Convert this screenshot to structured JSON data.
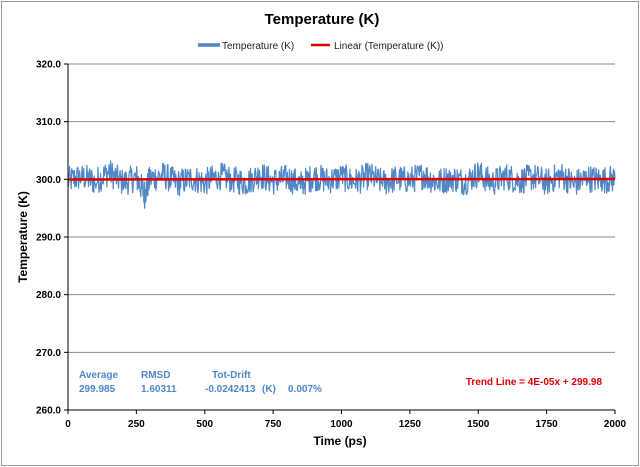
{
  "chart_data": {
    "type": "line",
    "title": "Temperature (K)",
    "xlabel": "Time (ps)",
    "ylabel": "Temperature (K)",
    "xlim": [
      0,
      2000
    ],
    "ylim": [
      260,
      320
    ],
    "x_ticks": [
      "0",
      "250",
      "500",
      "750",
      "1000",
      "1250",
      "1500",
      "1750",
      "2000"
    ],
    "y_ticks": [
      "260.0",
      "270.0",
      "280.0",
      "290.0",
      "300.0",
      "310.0",
      "320.0"
    ],
    "grid": "horizontal",
    "legend_position": "top",
    "series": [
      {
        "name": "Temperature (K)",
        "color": "#4f87c7",
        "style": "noisy line fluctuating around 300 K between about 294 and 305 K",
        "x": [
          0,
          50,
          100,
          150,
          200,
          250,
          280,
          300,
          350,
          400,
          450,
          500,
          550,
          600,
          650,
          700,
          750,
          800,
          850,
          900,
          950,
          1000,
          1050,
          1100,
          1150,
          1200,
          1250,
          1300,
          1350,
          1400,
          1450,
          1500,
          1550,
          1600,
          1650,
          1700,
          1750,
          1800,
          1850,
          1900,
          1950,
          2000
        ],
        "y": [
          299.5,
          301.0,
          299.2,
          302.5,
          298.8,
          300.6,
          295.0,
          300.2,
          301.5,
          298.6,
          300.4,
          299.0,
          301.2,
          300.0,
          298.9,
          301.6,
          299.3,
          300.5,
          298.4,
          301.0,
          299.6,
          300.8,
          299.1,
          301.3,
          298.8,
          300.2,
          299.7,
          301.4,
          298.9,
          300.6,
          299.2,
          302.0,
          298.7,
          301.1,
          299.4,
          300.9,
          299.0,
          301.5,
          298.6,
          300.3,
          299.8,
          300.1
        ]
      },
      {
        "name": "Linear (Temperature (K))",
        "color": "#e00000",
        "x": [
          0,
          2000
        ],
        "y": [
          299.98,
          300.06
        ]
      }
    ],
    "annotations": {
      "average_label": "Average",
      "average_value": "299.985",
      "rmsd_label": "RMSD",
      "rmsd_value": "1.60311",
      "totdrift_label": "Tot-Drift",
      "totdrift_value": "-0.0242413",
      "totdrift_unit": "(K)",
      "totdrift_percent": "0.007%",
      "trend_line": "Trend Line = 4E-05x + 299.98"
    }
  }
}
